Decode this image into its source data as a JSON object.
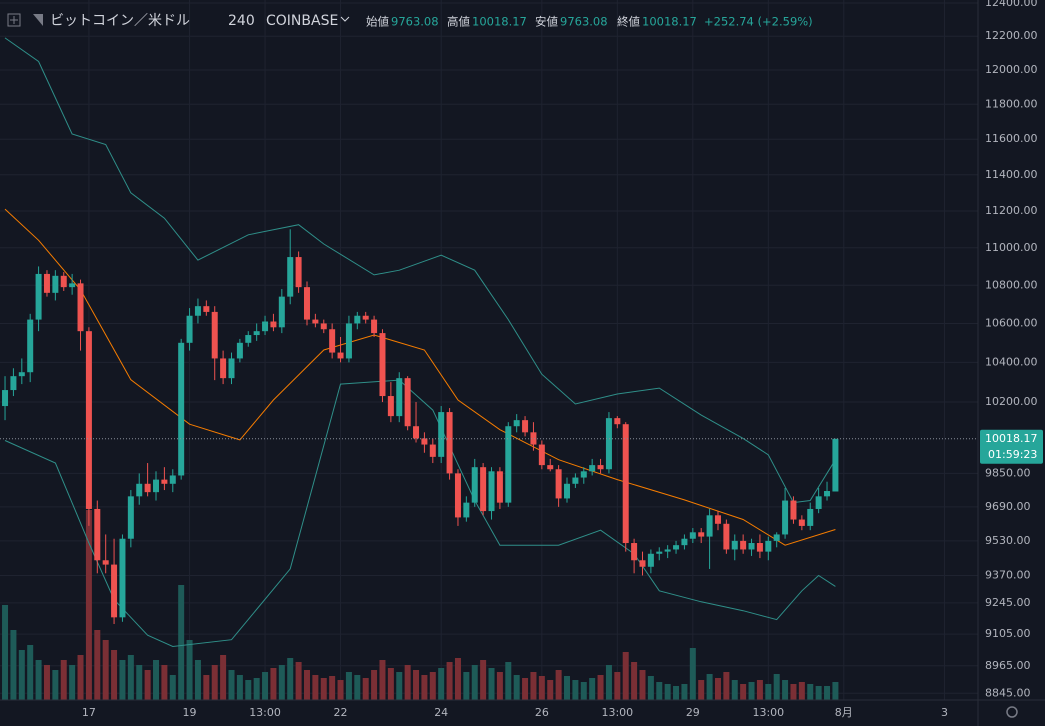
{
  "header": {
    "symbol": "ビットコイン／米ドル",
    "interval": "240",
    "exchange": "COINBASE",
    "open_label": "始値",
    "open": "9763.08",
    "high_label": "高値",
    "high": "10018.17",
    "low_label": "安値",
    "low": "9763.08",
    "close_label": "終値",
    "close": "10018.17",
    "change": "+252.74 (+2.59%)"
  },
  "chart_data": {
    "type": "candlestick",
    "ylog": true,
    "grid": true,
    "up_color": "#26a69a",
    "down_color": "#ef5350",
    "volume_up_color": "#1e5b58",
    "volume_down_color": "#7b2f35",
    "xlim": [
      -0.6,
      116
    ],
    "ylim": [
      8816,
      12418
    ],
    "vlim": [
      0,
      250
    ],
    "xticks": [
      {
        "value": 10,
        "label": "17"
      },
      {
        "value": 22,
        "label": "19"
      },
      {
        "value": 31,
        "label": "13:00"
      },
      {
        "value": 40,
        "label": "22"
      },
      {
        "value": 52,
        "label": "24"
      },
      {
        "value": 64,
        "label": "26"
      },
      {
        "value": 73,
        "label": "13:00"
      },
      {
        "value": 82,
        "label": "29"
      },
      {
        "value": 91,
        "label": "13:00"
      },
      {
        "value": 100,
        "label": "8月"
      },
      {
        "value": 112,
        "label": "3"
      }
    ],
    "yticks": [
      {
        "value": 12400,
        "label": "12400.00"
      },
      {
        "value": 12200,
        "label": "12200.00"
      },
      {
        "value": 12000,
        "label": "12000.00"
      },
      {
        "value": 11800,
        "label": "11800.00"
      },
      {
        "value": 11600,
        "label": "11600.00"
      },
      {
        "value": 11400,
        "label": "11400.00"
      },
      {
        "value": 11200,
        "label": "11200.00"
      },
      {
        "value": 11000,
        "label": "11000.00"
      },
      {
        "value": 10800,
        "label": "10800.00"
      },
      {
        "value": 10600,
        "label": "10600.00"
      },
      {
        "value": 10400,
        "label": "10400.00"
      },
      {
        "value": 10200,
        "label": "10200.00"
      },
      {
        "value": 9850,
        "label": "9850.00"
      },
      {
        "value": 9690,
        "label": "9690.00"
      },
      {
        "value": 9530,
        "label": "9530.00"
      },
      {
        "value": 9370,
        "label": "9370.00"
      },
      {
        "value": 9245,
        "label": "9245.00"
      },
      {
        "value": 9105,
        "label": "9105.00"
      },
      {
        "value": 8965,
        "label": "8965.00"
      },
      {
        "value": 8845,
        "label": "8845.00"
      }
    ],
    "last_price": 10018.17,
    "countdown": "01:59:23",
    "x": [
      0,
      1,
      2,
      3,
      4,
      5,
      6,
      7,
      8,
      9,
      10,
      11,
      12,
      13,
      14,
      15,
      16,
      17,
      18,
      19,
      20,
      21,
      22,
      23,
      24,
      25,
      26,
      27,
      28,
      29,
      30,
      31,
      32,
      33,
      34,
      35,
      36,
      37,
      38,
      39,
      40,
      41,
      42,
      43,
      44,
      45,
      46,
      47,
      48,
      49,
      50,
      51,
      52,
      53,
      54,
      55,
      56,
      57,
      58,
      59,
      60,
      61,
      62,
      63,
      64,
      65,
      66,
      67,
      68,
      69,
      70,
      71,
      72,
      73,
      74,
      75,
      76,
      77,
      78,
      79,
      80,
      81,
      82,
      83,
      84,
      85,
      86,
      87,
      88,
      89,
      90,
      91,
      92,
      93,
      94,
      95,
      96,
      97,
      98,
      99
    ],
    "candles": {
      "open": [
        10180,
        10260,
        10330,
        10350,
        10620,
        10860,
        10760,
        10850,
        10790,
        10810,
        10560,
        9680,
        9440,
        9420,
        9180,
        9540,
        9740,
        9800,
        9760,
        9820,
        9800,
        9840,
        10500,
        10640,
        10690,
        10660,
        10420,
        10320,
        10420,
        10500,
        10540,
        10560,
        10610,
        10580,
        10740,
        10950,
        10790,
        10620,
        10600,
        10570,
        10450,
        10420,
        10600,
        10640,
        10620,
        10550,
        10230,
        10130,
        10320,
        10080,
        10020,
        9990,
        9930,
        10150,
        9850,
        9640,
        9710,
        9880,
        9670,
        9860,
        9710,
        10080,
        10110,
        10050,
        9990,
        9890,
        9870,
        9730,
        9800,
        9830,
        9860,
        9890,
        9870,
        10120,
        10090,
        9520,
        9440,
        9410,
        9470,
        9480,
        9490,
        9510,
        9540,
        9570,
        9550,
        9650,
        9610,
        9490,
        9530,
        9490,
        9520,
        9480,
        9530,
        9560,
        9720,
        9630,
        9600,
        9680,
        9740,
        9763.08
      ],
      "high": [
        10330,
        10370,
        10420,
        10650,
        10900,
        10880,
        10880,
        10870,
        10860,
        10830,
        10580,
        9720,
        9560,
        9540,
        9560,
        9770,
        9850,
        9900,
        9860,
        9880,
        9870,
        10520,
        10680,
        10730,
        10720,
        10690,
        10460,
        10450,
        10520,
        10560,
        10600,
        10640,
        10650,
        10780,
        11100,
        10980,
        10820,
        10650,
        10620,
        10600,
        10530,
        10640,
        10660,
        10660,
        10640,
        10570,
        10300,
        10350,
        10330,
        10200,
        10050,
        10020,
        10180,
        10170,
        9870,
        9740,
        9920,
        9900,
        9880,
        9880,
        10100,
        10140,
        10130,
        10100,
        10010,
        9920,
        9890,
        9830,
        9850,
        9880,
        9920,
        9920,
        10150,
        10130,
        10100,
        9540,
        9480,
        9490,
        9500,
        9510,
        9530,
        9560,
        9590,
        9590,
        9680,
        9670,
        9630,
        9560,
        9560,
        9540,
        9560,
        9550,
        9570,
        9780,
        9740,
        9650,
        9710,
        9780,
        9810,
        10018.17
      ],
      "low": [
        10110,
        10230,
        10290,
        10300,
        10560,
        10740,
        10720,
        10770,
        10750,
        10460,
        9600,
        9380,
        9380,
        9150,
        9160,
        9500,
        9700,
        9740,
        9720,
        9770,
        9760,
        9820,
        10460,
        10600,
        10640,
        10310,
        10290,
        10290,
        10400,
        10480,
        10510,
        10540,
        10560,
        10550,
        10700,
        10760,
        10590,
        10580,
        10550,
        10420,
        10400,
        10400,
        10570,
        10600,
        10530,
        10200,
        10100,
        10100,
        10060,
        10000,
        9950,
        9900,
        9900,
        9820,
        9600,
        9620,
        9690,
        9650,
        9630,
        9680,
        9690,
        10050,
        10030,
        9960,
        9870,
        9860,
        9690,
        9710,
        9780,
        9800,
        9840,
        9850,
        9850,
        10070,
        9480,
        9380,
        9370,
        9380,
        9440,
        9450,
        9470,
        9490,
        9520,
        9520,
        9400,
        9580,
        9470,
        9440,
        9470,
        9460,
        9450,
        9440,
        9500,
        9540,
        9610,
        9580,
        9580,
        9660,
        9720,
        9763.08
      ],
      "close": [
        10260,
        10330,
        10350,
        10620,
        10860,
        10760,
        10850,
        10790,
        10810,
        10560,
        9680,
        9440,
        9420,
        9180,
        9540,
        9740,
        9800,
        9760,
        9820,
        9800,
        9840,
        10500,
        10640,
        10690,
        10660,
        10420,
        10320,
        10420,
        10500,
        10540,
        10560,
        10610,
        10580,
        10740,
        10950,
        10790,
        10620,
        10600,
        10570,
        10450,
        10420,
        10600,
        10640,
        10620,
        10550,
        10230,
        10130,
        10320,
        10080,
        10020,
        9990,
        9930,
        10150,
        9850,
        9640,
        9710,
        9880,
        9670,
        9860,
        9710,
        10080,
        10110,
        10050,
        9990,
        9890,
        9870,
        9730,
        9800,
        9830,
        9860,
        9890,
        9870,
        10120,
        10090,
        9520,
        9440,
        9410,
        9470,
        9480,
        9490,
        9510,
        9540,
        9570,
        9550,
        9650,
        9610,
        9490,
        9530,
        9490,
        9520,
        9480,
        9530,
        9560,
        9720,
        9630,
        9600,
        9680,
        9740,
        9765.43,
        10018.17
      ]
    },
    "volume": [
      95,
      70,
      50,
      55,
      40,
      35,
      30,
      40,
      35,
      45,
      190,
      70,
      60,
      50,
      40,
      45,
      35,
      30,
      40,
      35,
      25,
      115,
      60,
      40,
      25,
      35,
      45,
      30,
      25,
      20,
      22,
      28,
      32,
      35,
      42,
      38,
      30,
      25,
      22,
      24,
      20,
      28,
      25,
      22,
      30,
      40,
      32,
      28,
      35,
      30,
      25,
      28,
      32,
      38,
      42,
      28,
      35,
      40,
      32,
      28,
      38,
      25,
      22,
      28,
      24,
      20,
      30,
      24,
      20,
      18,
      22,
      25,
      35,
      28,
      48,
      38,
      30,
      24,
      18,
      16,
      14,
      16,
      52,
      20,
      26,
      22,
      28,
      20,
      16,
      18,
      20,
      16,
      26,
      20,
      16,
      18,
      16,
      14,
      14,
      18
    ],
    "lines": [
      {
        "color": "#2f8f89",
        "x": [
          0,
          4,
          8,
          12,
          15,
          19,
          23,
          29,
          35,
          38,
          44,
          47,
          52,
          56,
          60,
          64,
          68,
          73,
          78,
          83,
          88,
          91,
          94,
          96,
          99
        ],
        "values": [
          12190,
          12050,
          11630,
          11570,
          11300,
          11160,
          10934,
          11070,
          11125,
          11020,
          10855,
          10880,
          10960,
          10880,
          10620,
          10340,
          10190,
          10240,
          10270,
          10135,
          10020,
          9940,
          9710,
          9720,
          9916
        ]
      },
      {
        "color": "#2f8f89",
        "x": [
          0,
          6,
          10,
          13,
          17,
          20,
          27,
          34,
          40,
          47,
          51,
          56,
          59,
          66,
          71,
          75,
          78,
          83,
          88,
          92,
          95,
          97,
          99
        ],
        "values": [
          10010,
          9900,
          9520,
          9260,
          9100,
          9050,
          9080,
          9400,
          10290,
          10310,
          10160,
          9720,
          9510,
          9510,
          9580,
          9470,
          9300,
          9250,
          9210,
          9170,
          9300,
          9370,
          9320
        ]
      },
      {
        "color": "#f57c00",
        "x": [
          0,
          4,
          9,
          15,
          22,
          28,
          32,
          38,
          44,
          50,
          54,
          59,
          66,
          73,
          81,
          88,
          93,
          99
        ],
        "values": [
          11210,
          11040,
          10776,
          10312,
          10090,
          10013,
          10210,
          10463,
          10540,
          10463,
          10210,
          10063,
          9916,
          9820,
          9723,
          9630,
          9510,
          9583
        ]
      }
    ]
  }
}
